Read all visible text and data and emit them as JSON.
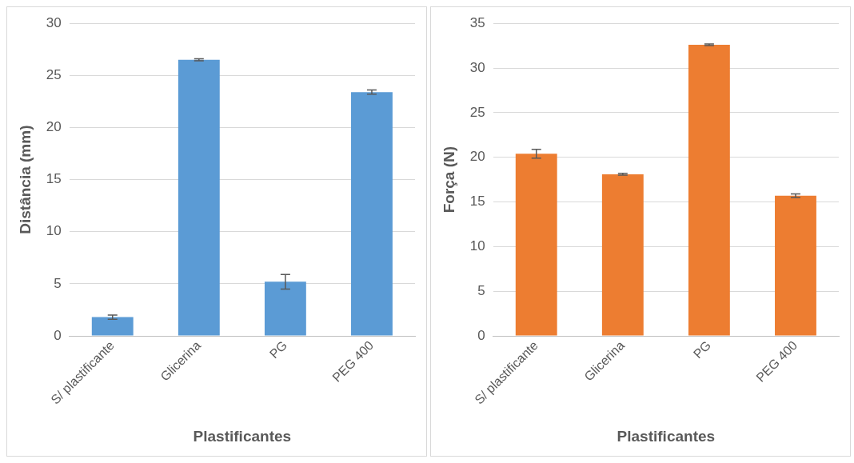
{
  "chart_data": [
    {
      "type": "bar",
      "xlabel": "Plastificantes",
      "ylabel": "Distância (mm)",
      "categories": [
        "S/ plastificante",
        "Glicerina",
        "PG",
        "PEG 400"
      ],
      "series": [
        {
          "color": "#5b9bd5",
          "values": [
            1.8,
            26.5,
            5.2,
            23.4
          ],
          "errors": [
            0.2,
            0.1,
            0.7,
            0.2
          ]
        }
      ],
      "ylim": [
        0,
        30
      ],
      "yticks": [
        0,
        5,
        10,
        15,
        20,
        25,
        30
      ],
      "grid": "y",
      "legend": false
    },
    {
      "type": "bar",
      "xlabel": "Plastificantes",
      "ylabel": "Força (N)",
      "categories": [
        "S/ plastificante",
        "Glicerina",
        "PG",
        "PEG 400"
      ],
      "series": [
        {
          "color": "#ed7d31",
          "values": [
            20.4,
            18.1,
            32.6,
            15.7
          ],
          "errors": [
            0.5,
            0.1,
            0.1,
            0.2
          ]
        }
      ],
      "ylim": [
        0,
        35
      ],
      "yticks": [
        0,
        5,
        10,
        15,
        20,
        25,
        30,
        35
      ],
      "grid": "y",
      "legend": false
    }
  ]
}
